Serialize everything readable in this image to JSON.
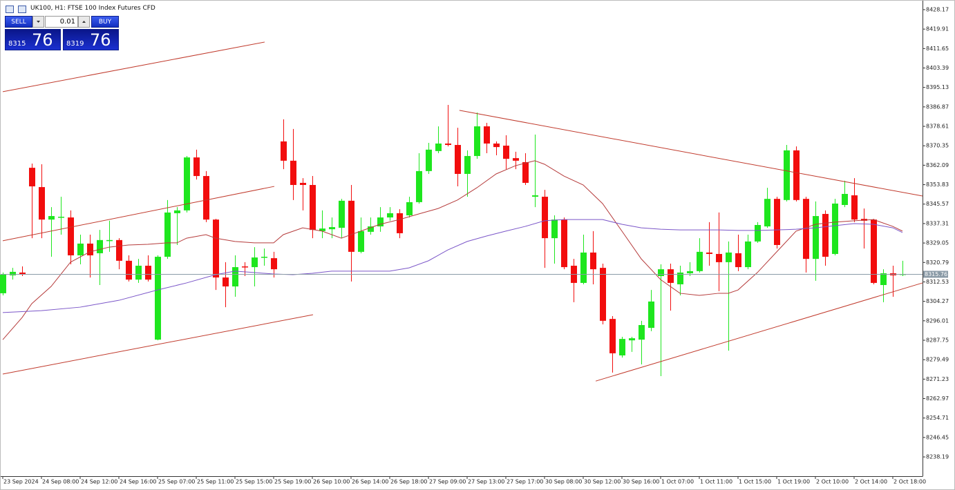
{
  "chart_data": {
    "type": "candlestick",
    "title": "UK100, H1: FTSE 100 Index Futures CFD",
    "categories": [
      "23 Sep 2024",
      null,
      null,
      null,
      "24 Sep 08:00",
      null,
      null,
      null,
      "24 Sep 12:00",
      null,
      null,
      null,
      "24 Sep 16:00",
      null,
      null,
      null,
      "25 Sep 07:00",
      null,
      null,
      null,
      "25 Sep 11:00",
      null,
      null,
      null,
      "25 Sep 15:00",
      null,
      null,
      null,
      "25 Sep 19:00",
      null,
      null,
      null,
      "26 Sep 10:00",
      null,
      null,
      null,
      "26 Sep 14:00",
      null,
      null,
      null,
      "26 Sep 18:00",
      null,
      null,
      null,
      "27 Sep 09:00",
      null,
      null,
      null,
      "27 Sep 13:00",
      null,
      null,
      null,
      "27 Sep 17:00",
      null,
      null,
      null,
      "30 Sep 08:00",
      null,
      null,
      null,
      "30 Sep 12:00",
      null,
      null,
      null,
      "30 Sep 16:00",
      null,
      null,
      null,
      "1 Oct 07:00",
      null,
      null,
      null,
      "1 Oct 11:00",
      null,
      null,
      null,
      "1 Oct 15:00",
      null,
      null,
      null,
      "1 Oct 19:00",
      null,
      null,
      null,
      "2 Oct 10:00",
      null,
      null,
      null,
      "2 Oct 14:00",
      null,
      null,
      null,
      "2 Oct 18:00",
      null
    ],
    "open": [
      8307.7,
      8315.3,
      8316.5,
      8361.0,
      8352.8,
      8339.0,
      8339.9,
      8339.9,
      8323.8,
      8328.8,
      8324.7,
      8330.0,
      8330.3,
      8321.5,
      8313.5,
      8319.4,
      8288.0,
      8323.2,
      8341.7,
      8342.9,
      8365.4,
      8357.5,
      8339.0,
      8314.4,
      8310.6,
      8319.1,
      8318.8,
      8322.9,
      8322.6,
      8372.2,
      8364.0,
      8354.6,
      8353.7,
      8334.1,
      8334.9,
      8335.5,
      8347.0,
      8325.3,
      8333.8,
      8336.1,
      8339.9,
      8341.7,
      8340.8,
      8346.4,
      8359.6,
      8368.1,
      8371.3,
      8370.7,
      8358.4,
      8366.0,
      8378.6,
      8371.3,
      8370.4,
      8365.1,
      8363.4,
      8348.7,
      8348.7,
      8331.1,
      8339.0,
      8319.4,
      8312.1,
      8325.0,
      8318.5,
      8296.8,
      8281.3,
      8287.7,
      8288.0,
      8293.0,
      8315.0,
      8317.9,
      8311.5,
      8316.2,
      8317.1,
      8325.0,
      8324.4,
      8320.9,
      8324.7,
      8318.8,
      8329.7,
      8336.1,
      8347.8,
      8347.3,
      8368.4,
      8347.8,
      8322.3,
      8341.4,
      8324.4,
      8345.2,
      8349.3,
      8339.3,
      8339.0,
      8311.2,
      8316.2,
      8315.6
    ],
    "high": [
      8316.5,
      8318.5,
      8319.1,
      8362.8,
      8362.5,
      8344.3,
      8348.7,
      8342.9,
      8332.6,
      8332.6,
      8334.6,
      8338.5,
      8331.1,
      8323.8,
      8322.3,
      8323.8,
      8323.8,
      8347.3,
      8344.3,
      8366.0,
      8368.7,
      8359.6,
      8339.3,
      8320.9,
      8323.8,
      8320.9,
      8327.3,
      8326.7,
      8325.3,
      8381.6,
      8377.5,
      8356.6,
      8357.5,
      8342.9,
      8339.9,
      8347.8,
      8353.7,
      8339.9,
      8339.9,
      8344.3,
      8344.3,
      8343.4,
      8348.7,
      8367.2,
      8371.6,
      8378.6,
      8387.7,
      8378.0,
      8368.4,
      8384.5,
      8380.1,
      8372.2,
      8374.8,
      8367.8,
      8367.2,
      8375.1,
      8351.6,
      8340.8,
      8339.9,
      8322.3,
      8332.6,
      8334.1,
      8320.3,
      8298.0,
      8289.2,
      8289.2,
      8296.0,
      8309.1,
      8320.0,
      8320.3,
      8319.4,
      8320.9,
      8331.1,
      8337.9,
      8342.0,
      8329.7,
      8332.6,
      8332.6,
      8337.9,
      8352.5,
      8348.7,
      8370.7,
      8370.1,
      8348.7,
      8346.7,
      8342.9,
      8347.8,
      8355.5,
      8356.6,
      8343.7,
      8339.3,
      8317.9,
      8319.4,
      8321.5
    ],
    "low": [
      8306.8,
      8313.5,
      8315.0,
      8331.1,
      8331.1,
      8323.2,
      8332.6,
      8320.0,
      8320.0,
      8314.4,
      8311.2,
      8325.3,
      8317.9,
      8312.7,
      8312.1,
      8312.7,
      8287.7,
      8322.3,
      8328.2,
      8342.0,
      8356.0,
      8337.9,
      8309.1,
      8301.8,
      8306.2,
      8315.0,
      8310.6,
      8319.4,
      8314.4,
      8360.4,
      8347.3,
      8342.9,
      8331.1,
      8331.1,
      8331.1,
      8331.1,
      8312.7,
      8324.7,
      8332.6,
      8333.8,
      8338.5,
      8331.1,
      8339.9,
      8345.8,
      8358.4,
      8367.2,
      8370.1,
      8353.1,
      8348.7,
      8364.8,
      8367.2,
      8366.3,
      8360.4,
      8360.4,
      8353.7,
      8344.3,
      8318.5,
      8320.3,
      8317.9,
      8303.9,
      8311.5,
      8311.5,
      8294.5,
      8274.0,
      8280.4,
      8282.8,
      8277.5,
      8291.6,
      8272.5,
      8300.3,
      8306.8,
      8315.0,
      8316.5,
      8319.4,
      8308.6,
      8283.3,
      8317.1,
      8317.9,
      8329.1,
      8335.5,
      8326.7,
      8346.7,
      8346.7,
      8316.5,
      8313.0,
      8319.4,
      8323.8,
      8344.3,
      8337.9,
      8326.7,
      8311.5,
      8303.9,
      8306.2,
      8315.0
    ],
    "close": [
      8315.6,
      8316.8,
      8315.9,
      8353.1,
      8339.0,
      8340.5,
      8340.2,
      8323.8,
      8328.8,
      8323.8,
      8330.3,
      8330.3,
      8321.5,
      8313.5,
      8319.4,
      8313.5,
      8323.2,
      8342.0,
      8342.9,
      8365.4,
      8357.5,
      8339.0,
      8314.4,
      8310.6,
      8318.8,
      8318.8,
      8322.9,
      8323.2,
      8317.9,
      8364.0,
      8353.7,
      8353.7,
      8334.6,
      8335.2,
      8335.8,
      8347.0,
      8325.3,
      8334.1,
      8336.1,
      8339.9,
      8341.7,
      8333.2,
      8346.4,
      8359.6,
      8368.7,
      8371.3,
      8370.7,
      8358.4,
      8366.0,
      8378.6,
      8371.3,
      8369.8,
      8364.8,
      8364.0,
      8354.6,
      8349.3,
      8331.1,
      8339.0,
      8318.8,
      8312.1,
      8325.0,
      8317.9,
      8296.0,
      8282.2,
      8288.3,
      8288.6,
      8294.2,
      8304.2,
      8317.9,
      8312.1,
      8316.5,
      8317.1,
      8325.3,
      8324.4,
      8320.9,
      8325.0,
      8318.8,
      8329.7,
      8336.7,
      8347.8,
      8328.2,
      8368.4,
      8347.3,
      8322.3,
      8340.5,
      8323.2,
      8345.8,
      8349.9,
      8339.0,
      8338.5,
      8312.1,
      8316.2,
      8315.3,
      8315.9
    ],
    "up_color": "#1ee61e",
    "down_color": "#f20d0d",
    "moving_averages": [
      {
        "color": "#b53a3a",
        "x": [
          0,
          2,
          3,
          5,
          7,
          9,
          11,
          13,
          15,
          17,
          18,
          19,
          21,
          22,
          24,
          26,
          28,
          29,
          31,
          33,
          35,
          37,
          39,
          41,
          43,
          45,
          47,
          49,
          51,
          53,
          55,
          56,
          58,
          60,
          62,
          64,
          66,
          68,
          70,
          72,
          74,
          75,
          76,
          78,
          80,
          82,
          84,
          86,
          88,
          90,
          92,
          93
        ],
        "values": [
          8288.0,
          8297.4,
          8303.3,
          8310.6,
          8320.9,
          8325.3,
          8327.3,
          8328.2,
          8328.5,
          8329.1,
          8329.1,
          8331.1,
          8332.6,
          8331.1,
          8329.7,
          8329.1,
          8329.1,
          8332.6,
          8335.5,
          8334.1,
          8331.1,
          8334.1,
          8337.0,
          8339.0,
          8341.4,
          8343.7,
          8347.3,
          8352.5,
          8358.4,
          8361.9,
          8364.0,
          8362.5,
          8357.5,
          8353.7,
          8345.8,
          8334.1,
          8322.3,
          8313.5,
          8307.7,
          8306.8,
          8307.7,
          8307.7,
          8309.1,
          8316.5,
          8325.3,
          8334.1,
          8337.0,
          8337.9,
          8338.5,
          8339.0,
          8336.1,
          8334.1
        ]
      },
      {
        "color": "#7a55c8",
        "x": [
          0,
          4,
          8,
          12,
          16,
          19,
          22,
          24,
          26,
          28,
          30,
          32,
          34,
          36,
          38,
          40,
          42,
          44,
          46,
          48,
          50,
          52,
          54,
          56,
          58,
          60,
          62,
          64,
          66,
          68,
          70,
          72,
          74,
          76,
          78,
          80,
          82,
          84,
          86,
          88,
          90,
          92,
          93
        ],
        "values": [
          8299.5,
          8300.3,
          8301.8,
          8304.7,
          8309.1,
          8312.1,
          8315.6,
          8317.1,
          8316.5,
          8315.9,
          8315.6,
          8316.2,
          8317.1,
          8317.1,
          8317.1,
          8317.1,
          8318.5,
          8321.5,
          8326.1,
          8329.7,
          8332.0,
          8334.1,
          8336.1,
          8338.5,
          8339.0,
          8339.0,
          8339.0,
          8337.0,
          8335.5,
          8334.9,
          8334.6,
          8334.6,
          8334.6,
          8334.4,
          8334.4,
          8334.6,
          8334.9,
          8335.5,
          8336.4,
          8337.3,
          8337.0,
          8335.5,
          8333.5
        ]
      }
    ],
    "trendlines": [
      {
        "color": "#c0392b",
        "x": [
          0,
          27.07
        ],
        "values": [
          8393.3,
          8414.4
        ]
      },
      {
        "color": "#c0392b",
        "x": [
          0,
          28.07
        ],
        "values": [
          8330.0,
          8353.1
        ]
      },
      {
        "color": "#c0392b",
        "x": [
          0,
          32.07
        ],
        "values": [
          8273.4,
          8298.6
        ]
      },
      {
        "color": "#c0392b",
        "x": [
          47.2,
          95.07
        ],
        "values": [
          8385.4,
          8349.0
        ]
      },
      {
        "color": "#c0392b",
        "x": [
          61.29,
          95.07
        ],
        "values": [
          8270.4,
          8312.1
        ]
      }
    ],
    "current_price": 8315.76,
    "ylim": [
      8230.0,
      8430.8
    ],
    "yticks": [
      8428.17,
      8419.91,
      8411.65,
      8403.39,
      8395.13,
      8386.87,
      8378.61,
      8370.35,
      8362.09,
      8353.83,
      8345.57,
      8337.31,
      8329.05,
      8320.79,
      8312.53,
      8304.27,
      8296.01,
      8287.75,
      8279.49,
      8271.23,
      8262.97,
      8254.71,
      8246.45,
      8238.19
    ]
  },
  "trade_panel": {
    "sell": "SELL",
    "buy": "BUY",
    "volume": "0.01",
    "bid": {
      "main": "8315",
      "pips": "76"
    },
    "ask": {
      "main": "8319",
      "pips": "76"
    }
  }
}
